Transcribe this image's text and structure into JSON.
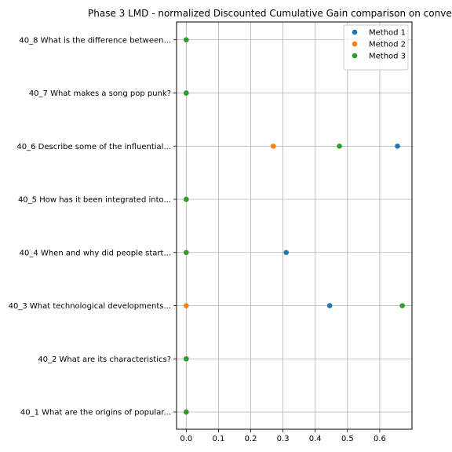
{
  "chart_data": {
    "type": "scatter",
    "title": "Phase 3 LMD - normalized Discounted Cumulative Gain comparison on conve",
    "xlabel": "",
    "ylabel": "",
    "xlim": [
      -0.03,
      0.7
    ],
    "xticks": [
      0.0,
      0.1,
      0.2,
      0.3,
      0.4,
      0.5,
      0.6
    ],
    "xtick_labels": [
      "0.0",
      "0.1",
      "0.2",
      "0.3",
      "0.4",
      "0.5",
      "0.6"
    ],
    "categories": [
      "40_1 What are the origins of popular...",
      "40_2 What are its characteristics?",
      "40_3 What technological developments...",
      "40_4 When and why did people start...",
      "40_5 How has it been integrated into...",
      "40_6 Describe some of the influential...",
      "40_7 What makes a song pop punk?",
      "40_8 What is the difference between..."
    ],
    "series": [
      {
        "name": "Method 1",
        "color": "#1f77b4",
        "values": [
          0,
          0,
          0.445,
          0.31,
          0,
          0.655,
          0,
          0
        ]
      },
      {
        "name": "Method 2",
        "color": "#ff7f0e",
        "values": [
          0,
          0,
          0,
          0,
          0,
          0.27,
          0,
          0
        ]
      },
      {
        "name": "Method 3",
        "color": "#2ca02c",
        "values": [
          0,
          0,
          0.67,
          0,
          0,
          0.475,
          0,
          0
        ]
      }
    ],
    "grid": true,
    "legend_position": "top-right"
  }
}
